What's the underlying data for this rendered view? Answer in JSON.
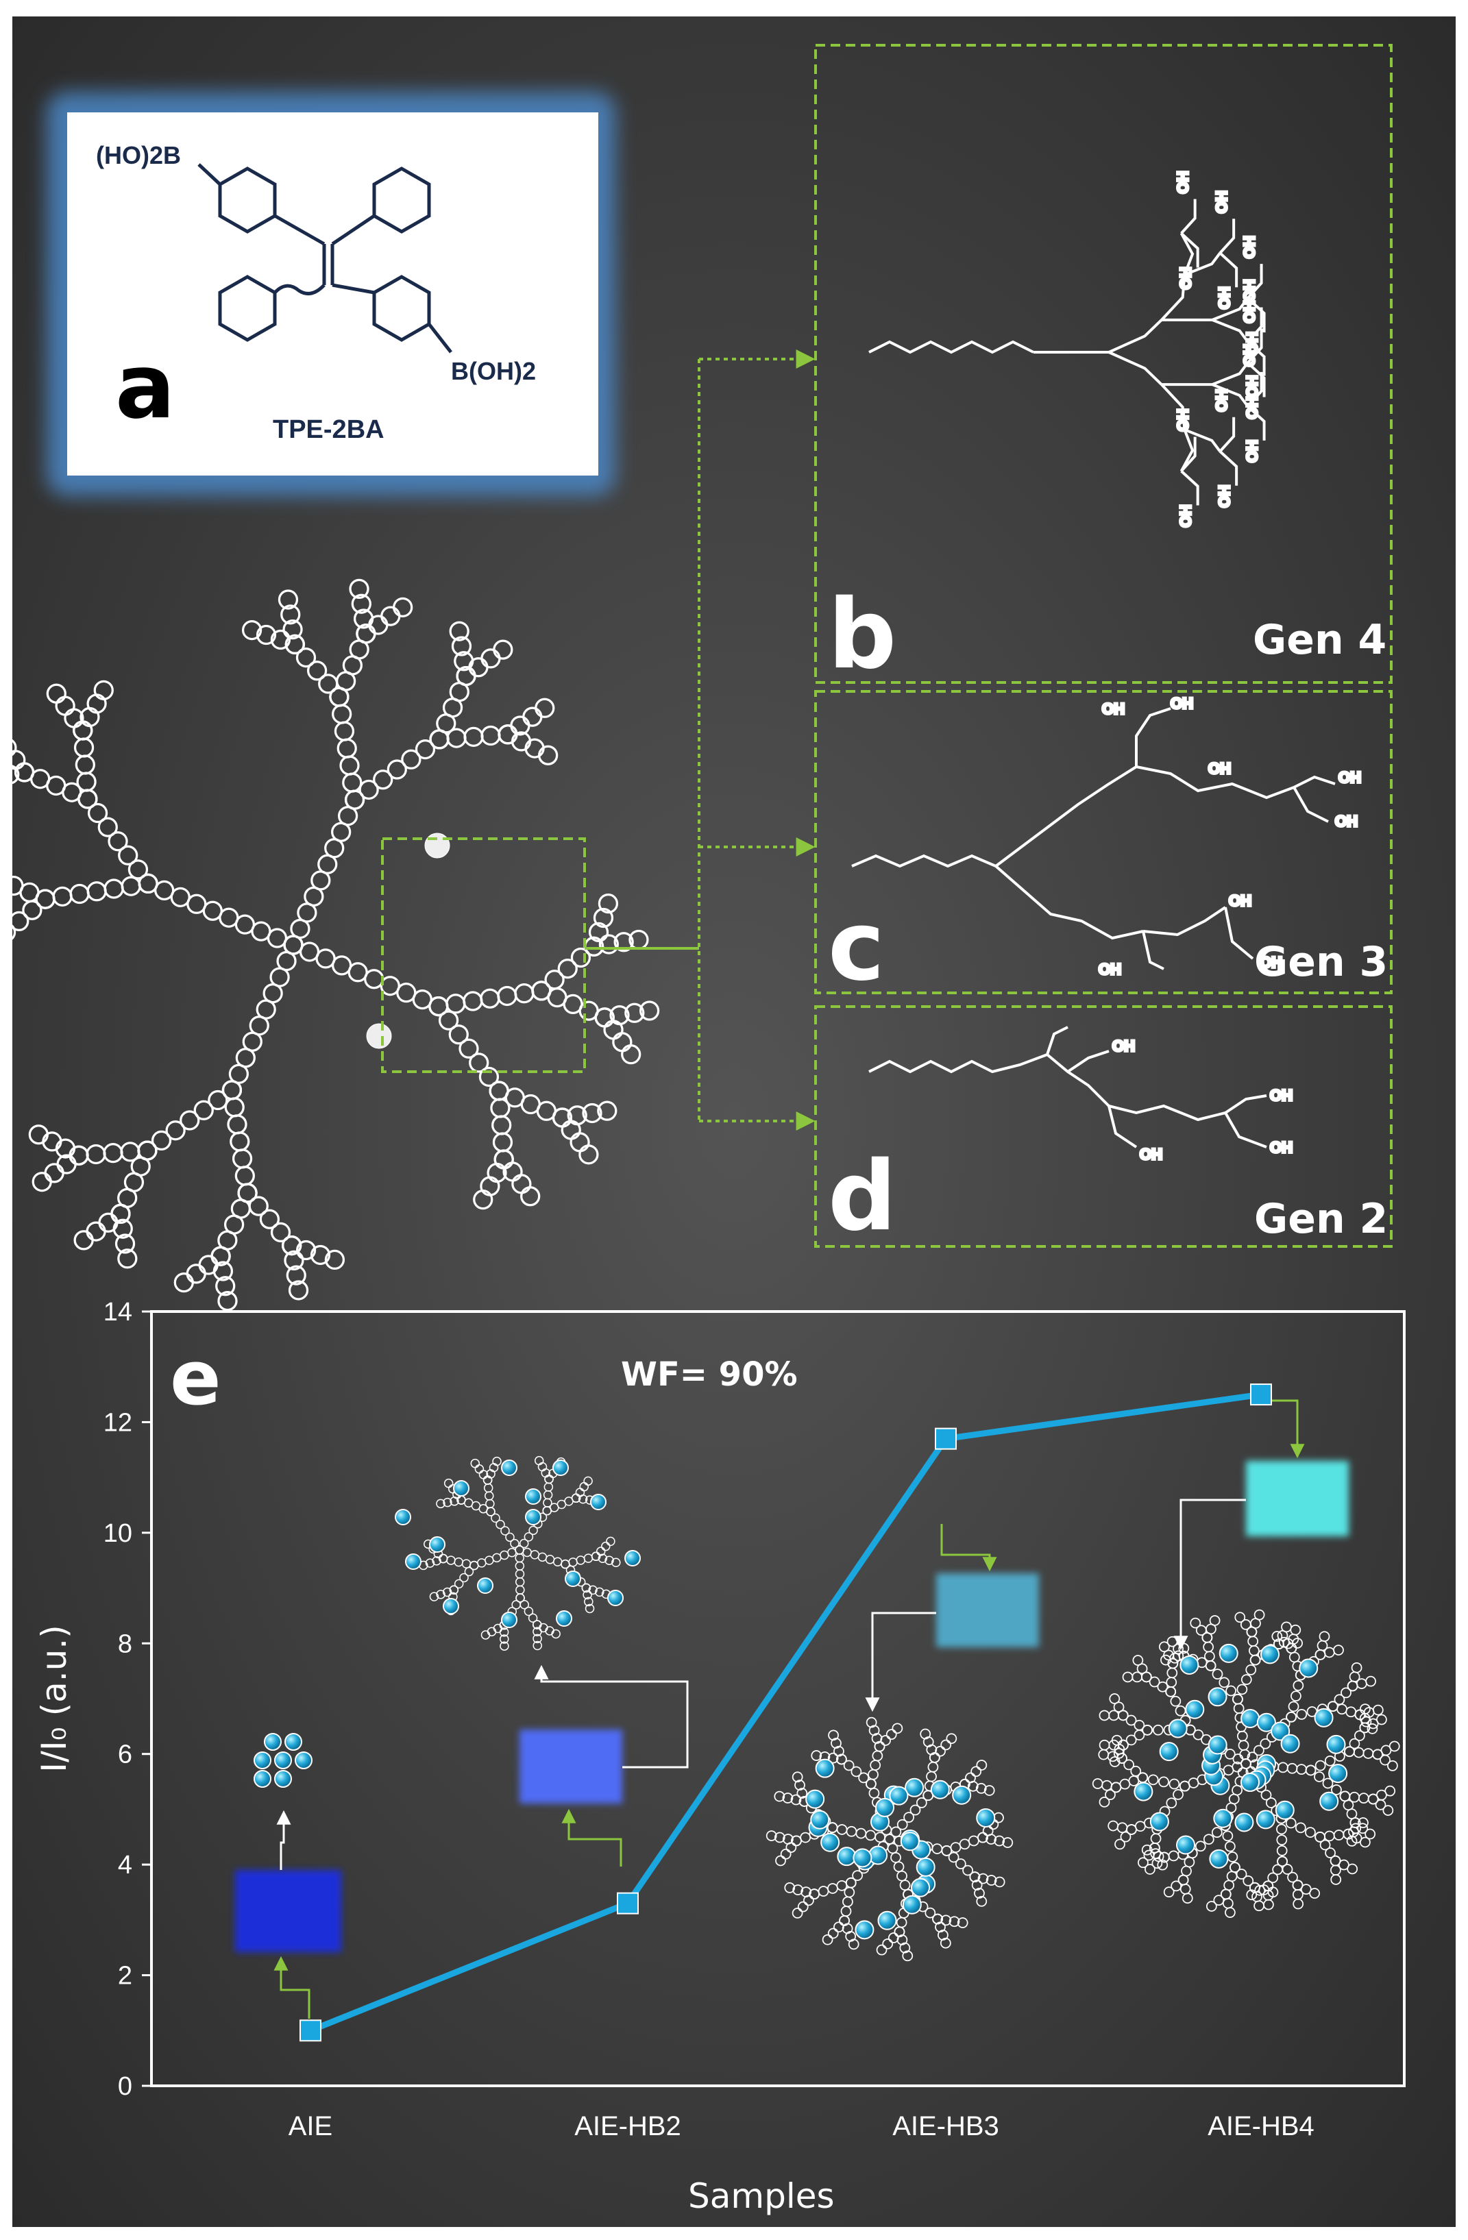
{
  "panels": {
    "a": {
      "letter": "a",
      "compound_name": "TPE-2BA",
      "substituent_top": "(HO)2B",
      "substituent_bottom": "B(OH)2"
    },
    "b": {
      "letter": "b",
      "generation": "Gen 4"
    },
    "c": {
      "letter": "c",
      "generation": "Gen 3"
    },
    "d": {
      "letter": "d",
      "generation": "Gen 2"
    }
  },
  "chem_labels": {
    "hydroxyl": "OH"
  },
  "colors": {
    "series_line": "#1aa7e0",
    "dashed_box": "#8cc63f",
    "hydroxyl": "#25d8e6",
    "swatch_AIE": "#1e2fd8",
    "swatch_AIE_HB2": "#4f6cf5",
    "swatch_AIE_HB3": "#4fa6c4",
    "swatch_AIE_HB4": "#58e3e3"
  },
  "chart_data": {
    "type": "line",
    "panel_letter": "e",
    "annotation": "WF= 90%",
    "categories": [
      "AIE",
      "AIE-HB2",
      "AIE-HB3",
      "AIE-HB4"
    ],
    "series": [
      {
        "values": [
          1.0,
          3.3,
          11.7,
          12.5
        ]
      }
    ],
    "xlabel": "Samples",
    "ylabel": "I/I₀ (a.u.)",
    "ylim": [
      0,
      14
    ],
    "yticks": [
      0,
      2,
      4,
      6,
      8,
      10,
      12,
      14
    ],
    "grid": false,
    "legend": "none"
  }
}
